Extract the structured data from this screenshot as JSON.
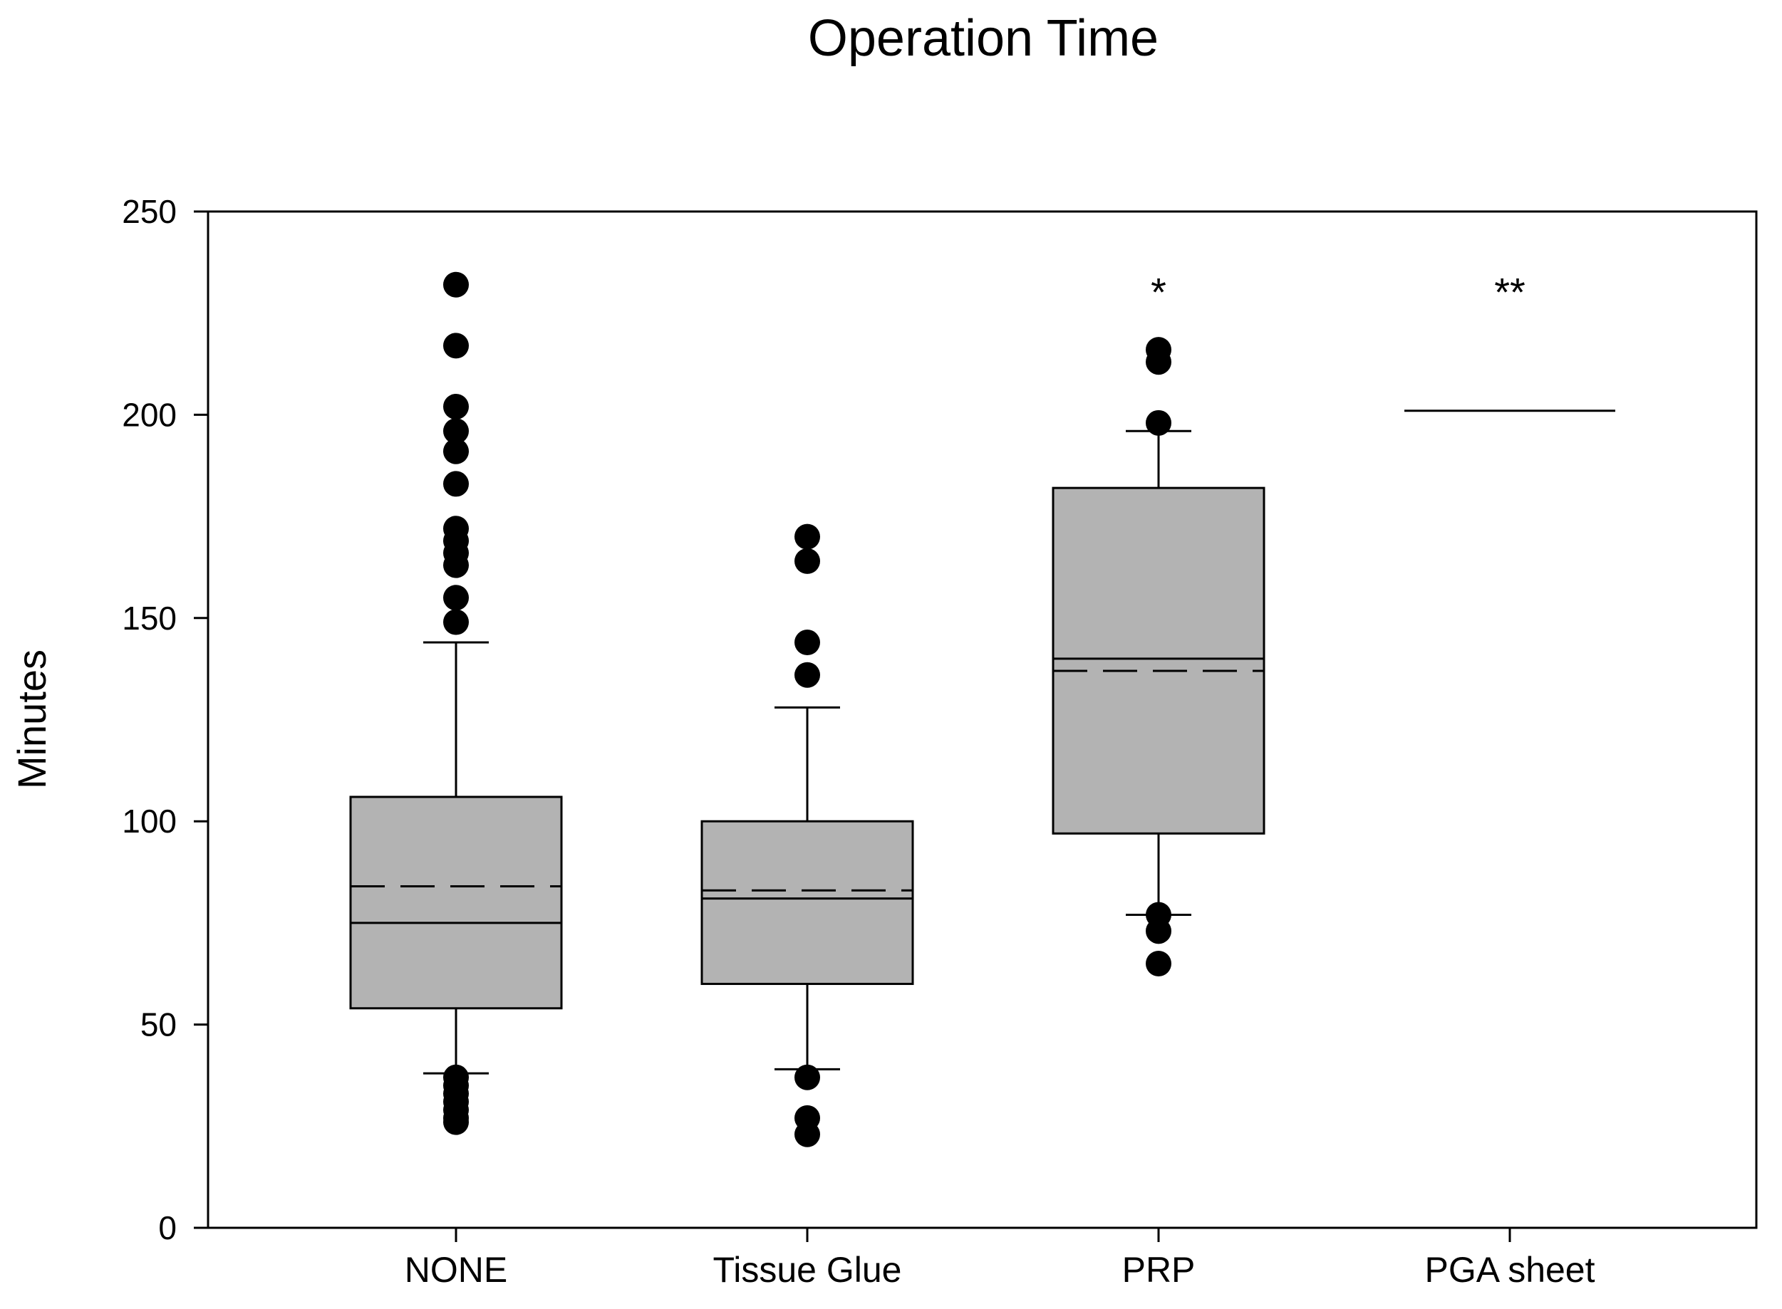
{
  "chart_data": {
    "type": "box",
    "title": "Operation Time",
    "xlabel": "",
    "ylabel": "Minutes",
    "ylim": [
      0,
      250
    ],
    "yticks": [
      0,
      50,
      100,
      150,
      200,
      250
    ],
    "categories": [
      "NONE",
      "Tissue Glue",
      "PRP",
      "PGA sheet"
    ],
    "legend": "none",
    "grid": false,
    "median_style": "solid line",
    "mean_style": "dashed line",
    "colors": {
      "box_fill": "#b3b3b3",
      "stroke": "#000000",
      "point": "#000000"
    },
    "boxes": [
      {
        "category": "NONE",
        "q1": 54,
        "median": 75,
        "mean": 84,
        "q3": 106,
        "whisker_low": 38,
        "whisker_high": 144,
        "outliers": [
          232,
          217,
          202,
          196,
          191,
          183,
          172,
          169,
          166,
          163,
          155,
          149,
          37,
          35,
          33,
          31,
          29,
          27,
          26
        ],
        "annotation": ""
      },
      {
        "category": "Tissue Glue",
        "q1": 60,
        "median": 81,
        "mean": 83,
        "q3": 100,
        "whisker_low": 39,
        "whisker_high": 128,
        "outliers": [
          170,
          164,
          144,
          136,
          37,
          27,
          23
        ],
        "annotation": ""
      },
      {
        "category": "PRP",
        "q1": 97,
        "median": 140,
        "mean": 137,
        "q3": 182,
        "whisker_low": 77,
        "whisker_high": 196,
        "outliers": [
          216,
          213,
          198,
          77,
          73,
          65
        ],
        "annotation": "*"
      },
      {
        "category": "PGA sheet",
        "single_value": 201,
        "annotation": "**"
      }
    ]
  }
}
